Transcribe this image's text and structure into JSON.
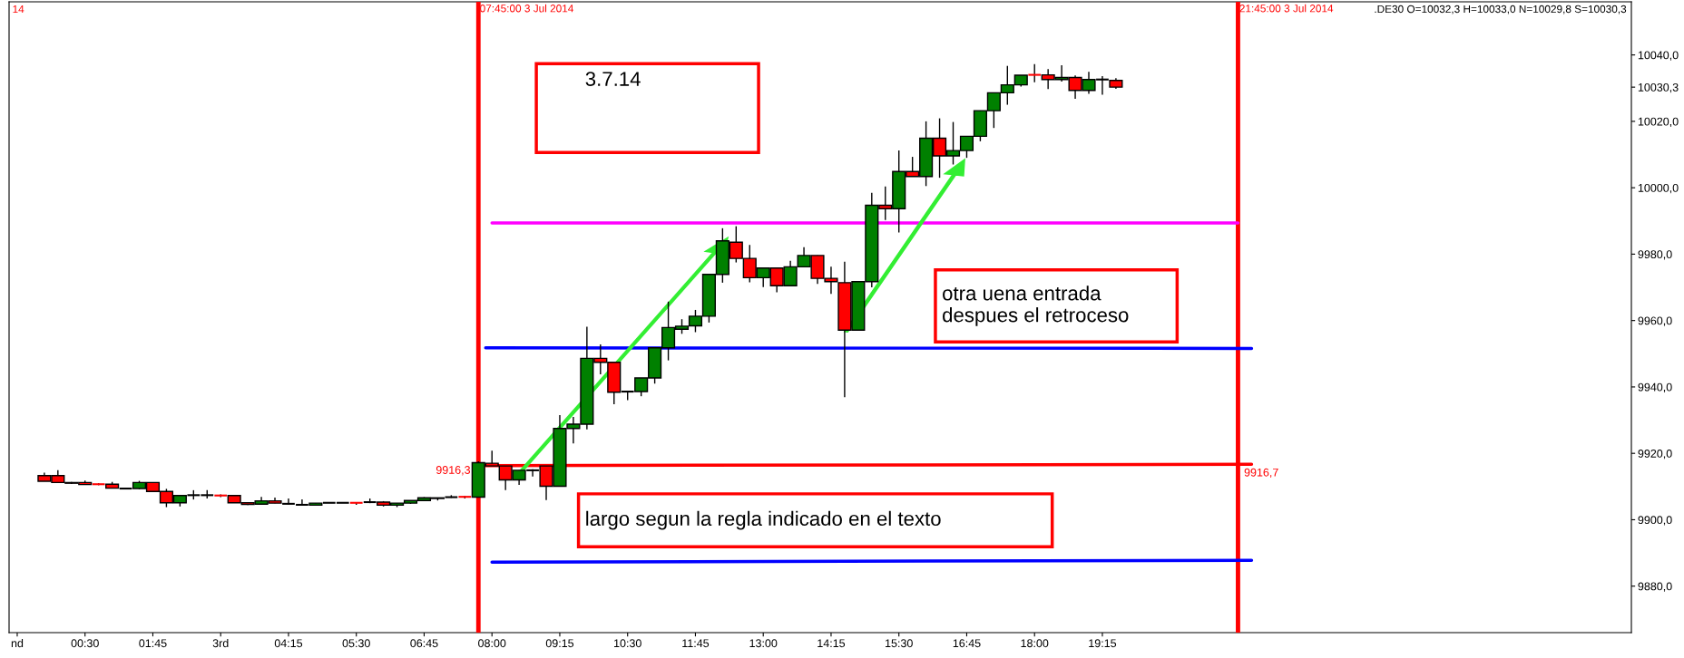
{
  "chart_data": {
    "type": "candlestick",
    "x": [
      "2014-07-02T23:45",
      "2014-07-03T00:00",
      "2014-07-03T00:15",
      "2014-07-03T00:30",
      "2014-07-03T00:45",
      "2014-07-03T01:00",
      "2014-07-03T01:15",
      "2014-07-03T01:30",
      "2014-07-03T01:45",
      "2014-07-03T02:00",
      "2014-07-03T02:15",
      "2014-07-03T02:30",
      "2014-07-03T02:45",
      "2014-07-03T03:00",
      "2014-07-03T03:15",
      "2014-07-03T03:30",
      "2014-07-03T03:45",
      "2014-07-03T04:00",
      "2014-07-03T04:15",
      "2014-07-03T04:30",
      "2014-07-03T04:45",
      "2014-07-03T05:00",
      "2014-07-03T05:15",
      "2014-07-03T05:30",
      "2014-07-03T05:45",
      "2014-07-03T06:00",
      "2014-07-03T06:15",
      "2014-07-03T06:30",
      "2014-07-03T06:45",
      "2014-07-03T07:00",
      "2014-07-03T07:15",
      "2014-07-03T07:30",
      "2014-07-03T07:45",
      "2014-07-03T08:00",
      "2014-07-03T08:15",
      "2014-07-03T08:30",
      "2014-07-03T08:45",
      "2014-07-03T09:00",
      "2014-07-03T09:15",
      "2014-07-03T09:30",
      "2014-07-03T09:45",
      "2014-07-03T10:00",
      "2014-07-03T10:15",
      "2014-07-03T10:30",
      "2014-07-03T10:45",
      "2014-07-03T11:00",
      "2014-07-03T11:15",
      "2014-07-03T11:30",
      "2014-07-03T11:45",
      "2014-07-03T12:00",
      "2014-07-03T12:15",
      "2014-07-03T12:30",
      "2014-07-03T12:45",
      "2014-07-03T13:00",
      "2014-07-03T13:15",
      "2014-07-03T13:30",
      "2014-07-03T13:45",
      "2014-07-03T14:00",
      "2014-07-03T14:15",
      "2014-07-03T14:30",
      "2014-07-03T14:45",
      "2014-07-03T15:00",
      "2014-07-03T15:15",
      "2014-07-03T15:30",
      "2014-07-03T15:45",
      "2014-07-03T16:00",
      "2014-07-03T16:15",
      "2014-07-03T16:30",
      "2014-07-03T16:45",
      "2014-07-03T17:00",
      "2014-07-03T17:15",
      "2014-07-03T17:30",
      "2014-07-03T17:45",
      "2014-07-03T18:00",
      "2014-07-03T18:15",
      "2014-07-03T18:30",
      "2014-07-03T18:45",
      "2014-07-03T19:00",
      "2014-07-03T19:15",
      "2014-07-03T19:30"
    ],
    "ohlc": [
      [
        9913.3,
        9914.2,
        9911.6,
        9911.6
      ],
      [
        9913.3,
        9914.9,
        9911.2,
        9911.2
      ],
      [
        9911.2,
        9911.4,
        9910.8,
        9911.0
      ],
      [
        9911.2,
        9911.8,
        9910.6,
        9910.6
      ],
      [
        9910.7,
        9911.0,
        9910.4,
        9910.6
      ],
      [
        9910.7,
        9911.4,
        9909.5,
        9909.5
      ],
      [
        9909.4,
        9909.4,
        9909.4,
        9909.4
      ],
      [
        9909.4,
        9911.7,
        9909.2,
        9911.2
      ],
      [
        9911.2,
        9911.2,
        9908.5,
        9908.5
      ],
      [
        9908.5,
        9909.3,
        9903.8,
        9905.1
      ],
      [
        9905.1,
        9907.3,
        9904.0,
        9907.3
      ],
      [
        9907.4,
        9908.9,
        9906.1,
        9907.4
      ],
      [
        9907.4,
        9908.9,
        9906.4,
        9907.4
      ],
      [
        9907.3,
        9907.6,
        9906.8,
        9907.1
      ],
      [
        9907.3,
        9907.3,
        9905.1,
        9905.1
      ],
      [
        9905.1,
        9905.1,
        9904.4,
        9904.6
      ],
      [
        9904.7,
        9906.9,
        9904.5,
        9905.7
      ],
      [
        9905.7,
        9906.7,
        9905.0,
        9905.0
      ],
      [
        9904.8,
        9906.4,
        9904.6,
        9904.8
      ],
      [
        9904.5,
        9906.1,
        9904.5,
        9904.5
      ],
      [
        9904.4,
        9905.0,
        9904.4,
        9905.0
      ],
      [
        9905.1,
        9905.3,
        9905.1,
        9905.1
      ],
      [
        9905.1,
        9905.3,
        9905.1,
        9905.1
      ],
      [
        9905.1,
        9905.3,
        9904.5,
        9905.0
      ],
      [
        9905.3,
        9906.4,
        9905.0,
        9905.3
      ],
      [
        9905.3,
        9905.6,
        9904.0,
        9904.4
      ],
      [
        9904.4,
        9905.0,
        9903.8,
        9905.0
      ],
      [
        9905.0,
        9905.8,
        9904.8,
        9905.8
      ],
      [
        9905.8,
        9906.8,
        9905.8,
        9906.6
      ],
      [
        9906.6,
        9906.6,
        9905.8,
        9906.4
      ],
      [
        9906.8,
        9907.4,
        9906.6,
        9906.8
      ],
      [
        9906.9,
        9907.2,
        9906.4,
        9906.8
      ],
      [
        9906.8,
        9917.6,
        9906.8,
        9917.2
      ],
      [
        9917.0,
        9920.8,
        9916.2,
        9916.2
      ],
      [
        9916.2,
        9916.2,
        9908.9,
        9912.0
      ],
      [
        9912.0,
        9914.9,
        9910.5,
        9914.9
      ],
      [
        9914.9,
        9915.2,
        9913.0,
        9914.9
      ],
      [
        9916.2,
        9916.2,
        9905.9,
        9910.1
      ],
      [
        9910.1,
        9931.5,
        9910.1,
        9927.5
      ],
      [
        9927.5,
        9931.0,
        9923.0,
        9928.8
      ],
      [
        9928.8,
        9958.1,
        9927.2,
        9948.6
      ],
      [
        9948.6,
        9952.8,
        9943.8,
        9947.4
      ],
      [
        9947.4,
        9947.4,
        9934.8,
        9938.4
      ],
      [
        9938.6,
        9938.6,
        9936.0,
        9938.6
      ],
      [
        9938.6,
        9942.7,
        9937.2,
        9942.7
      ],
      [
        9942.7,
        9951.8,
        9941.0,
        9951.8
      ],
      [
        9951.8,
        9965.7,
        9948.0,
        9957.9
      ],
      [
        9957.4,
        9960.4,
        9956.0,
        9958.3
      ],
      [
        9958.4,
        9963.2,
        9956.5,
        9961.3
      ],
      [
        9961.3,
        9973.9,
        9959.4,
        9973.9
      ],
      [
        9973.9,
        9987.8,
        9971.4,
        9984.0
      ],
      [
        9983.6,
        9988.4,
        9977.5,
        9978.7
      ],
      [
        9978.7,
        9982.8,
        9971.5,
        9972.9
      ],
      [
        9972.9,
        9975.8,
        9970.1,
        9975.8
      ],
      [
        9975.8,
        9975.8,
        9968.5,
        9970.5
      ],
      [
        9970.5,
        9978.0,
        9970.5,
        9976.2
      ],
      [
        9976.2,
        9982.1,
        9976.2,
        9979.6
      ],
      [
        9979.6,
        9979.6,
        9971.0,
        9972.7
      ],
      [
        9972.7,
        9976.2,
        9968.0,
        9971.7
      ],
      [
        9971.4,
        9977.7,
        9936.9,
        9957.1
      ],
      [
        9957.1,
        9971.7,
        9957.1,
        9971.7
      ],
      [
        9971.7,
        9998.5,
        9970.0,
        9994.7
      ],
      [
        9994.7,
        10000.4,
        9990.3,
        9993.7
      ],
      [
        9993.7,
        10011.2,
        9986.5,
        10004.9
      ],
      [
        10004.9,
        10009.3,
        10003.4,
        10003.4
      ],
      [
        10003.4,
        10020.0,
        10000.5,
        10014.9
      ],
      [
        10014.9,
        10020.9,
        10003.0,
        10009.6
      ],
      [
        10009.6,
        10019.8,
        10007.0,
        10011.2
      ],
      [
        10011.2,
        10015.5,
        10009.0,
        10015.5
      ],
      [
        10015.5,
        10023.2,
        10014.0,
        10023.2
      ],
      [
        10023.2,
        10028.6,
        10018.0,
        10028.6
      ],
      [
        10028.6,
        10036.7,
        10025.0,
        10031.0
      ],
      [
        10031.0,
        10033.9,
        10030.5,
        10033.9
      ],
      [
        10034.0,
        10037.2,
        10031.8,
        10033.9
      ],
      [
        10034.0,
        10035.7,
        10029.7,
        10032.6
      ],
      [
        10032.6,
        10036.9,
        10032.0,
        10033.2
      ],
      [
        10033.2,
        10033.8,
        10026.8,
        10029.3
      ],
      [
        10029.3,
        10034.9,
        10028.3,
        10032.6
      ],
      [
        10032.6,
        10033.6,
        10028.0,
        10032.6
      ],
      [
        10032.3,
        10033.0,
        10029.8,
        10030.3
      ]
    ],
    "colors": [
      "#ff0000",
      "#ff0000",
      "#ff0000",
      "#ff0000",
      "#ff0000",
      "#ff0000",
      "#000000",
      "#008000",
      "#ff0000",
      "#ff0000",
      "#008000",
      "#000000",
      "#000000",
      "#ff0000",
      "#ff0000",
      "#ff0000",
      "#008000",
      "#ff0000",
      "#000000",
      "#000000",
      "#008000",
      "#000000",
      "#000000",
      "#ff0000",
      "#000000",
      "#ff0000",
      "#008000",
      "#008000",
      "#008000",
      "#ff0000",
      "#000000",
      "#ff0000",
      "#008000",
      "#ff0000",
      "#ff0000",
      "#008000",
      "#000000",
      "#ff0000",
      "#008000",
      "#008000",
      "#008000",
      "#ff0000",
      "#ff0000",
      "#000000",
      "#008000",
      "#008000",
      "#008000",
      "#008000",
      "#008000",
      "#008000",
      "#008000",
      "#ff0000",
      "#ff0000",
      "#008000",
      "#ff0000",
      "#008000",
      "#008000",
      "#ff0000",
      "#ff0000",
      "#ff0000",
      "#008000",
      "#008000",
      "#ff0000",
      "#008000",
      "#ff0000",
      "#008000",
      "#ff0000",
      "#008000",
      "#008000",
      "#008000",
      "#008000",
      "#008000",
      "#008000",
      "#ff0000",
      "#ff0000",
      "#008000",
      "#ff0000",
      "#008000",
      "#000000",
      "#ff0000"
    ],
    "series": [
      {
        "type": "line",
        "color": "#ff00ff",
        "x": [
          "2014-07-03T08:00",
          "2014-07-03T21:45"
        ],
        "values": [
          9989.4,
          9989.4
        ]
      },
      {
        "type": "line",
        "color": "#0000ff",
        "x": [
          "2014-07-03T07:53",
          "2014-07-03T22:00"
        ],
        "values": [
          9951.8,
          9951.6
        ]
      },
      {
        "type": "line",
        "color": "#ff0000",
        "x": [
          "2014-07-03T07:53",
          "2014-07-03T22:00"
        ],
        "values": [
          9916.3,
          9916.7
        ],
        "value_labels": [
          "9916,3",
          "9916,7"
        ]
      },
      {
        "type": "line",
        "color": "#0000ff",
        "x": [
          "2014-07-03T08:00",
          "2014-07-03T22:00"
        ],
        "values": [
          9887.2,
          9887.8
        ]
      }
    ],
    "ref_lines": [
      {
        "axis": "x",
        "value": "2014-07-03T07:45",
        "label": "07:45:00 3 Jul 2014",
        "color": "#ff0000"
      },
      {
        "axis": "x",
        "value": "2014-07-03T21:45",
        "label": "21:45:00 3 Jul 2014",
        "color": "#ff0000"
      }
    ],
    "annotations": [
      "14",
      ".DE30 O=10032,3 H=10033,0 N=10029,8 S=10030,3",
      "3.7.14",
      "otra uena entrada\ndespues el retroceso",
      "largo segun la regla indicado en el texto"
    ],
    "xlim": [
      "2014-07-02T23:06",
      "2014-07-04T05:00"
    ],
    "xticks": [
      {
        "value": "2014-07-02T23:15",
        "label": "nd"
      },
      {
        "value": "2014-07-03T00:30",
        "label": "00:30"
      },
      {
        "value": "2014-07-03T01:45",
        "label": "01:45"
      },
      {
        "value": "2014-07-03T03:00",
        "label": "3rd"
      },
      {
        "value": "2014-07-03T04:15",
        "label": "04:15"
      },
      {
        "value": "2014-07-03T05:30",
        "label": "05:30"
      },
      {
        "value": "2014-07-03T06:45",
        "label": "06:45"
      },
      {
        "value": "2014-07-03T08:00",
        "label": "08:00"
      },
      {
        "value": "2014-07-03T09:15",
        "label": "09:15"
      },
      {
        "value": "2014-07-03T10:30",
        "label": "10:30"
      },
      {
        "value": "2014-07-03T11:45",
        "label": "11:45"
      },
      {
        "value": "2014-07-03T13:00",
        "label": "13:00"
      },
      {
        "value": "2014-07-03T14:15",
        "label": "14:15"
      },
      {
        "value": "2014-07-03T15:30",
        "label": "15:30"
      },
      {
        "value": "2014-07-03T16:45",
        "label": "16:45"
      },
      {
        "value": "2014-07-03T18:00",
        "label": "18:00"
      },
      {
        "value": "2014-07-03T19:15",
        "label": "19:15"
      }
    ],
    "ylim": [
      9866,
      10056
    ],
    "yticks": [
      {
        "value": 9880,
        "label": "9880,0"
      },
      {
        "value": 9900,
        "label": "9900,0"
      },
      {
        "value": 9920,
        "label": "9920,0"
      },
      {
        "value": 9940,
        "label": "9940,0"
      },
      {
        "value": 9960,
        "label": "9960,0"
      },
      {
        "value": 9980,
        "label": "9980,0"
      },
      {
        "value": 10000,
        "label": "10000,0"
      },
      {
        "value": 10020,
        "label": "10020,0"
      },
      {
        "value": 10030.3,
        "label": "10030,3"
      },
      {
        "value": 10040,
        "label": "10040,0"
      }
    ],
    "grid": false
  }
}
